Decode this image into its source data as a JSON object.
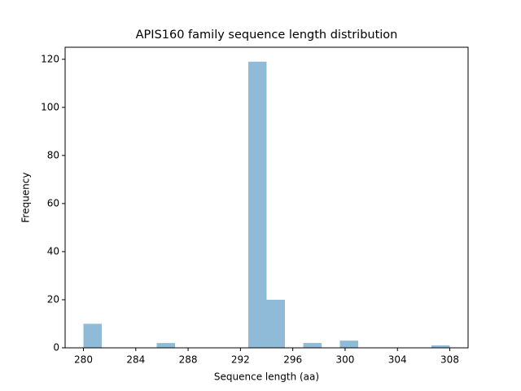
{
  "chart_data": {
    "type": "histogram",
    "title": "APIS160 family sequence length distribution",
    "xlabel": "Sequence length (aa)",
    "ylabel": "Frequency",
    "bins": [
      280,
      281.4,
      282.8,
      284.2,
      285.6,
      287,
      288.4,
      289.8,
      291.2,
      292.6,
      294,
      295.4,
      296.8,
      298.2,
      299.6,
      301,
      302.4,
      303.8,
      305.2,
      306.6,
      308
    ],
    "values": [
      10,
      0,
      0,
      0,
      2,
      0,
      0,
      0,
      0,
      119,
      20,
      0,
      2,
      0,
      3,
      0,
      0,
      0,
      0,
      1
    ],
    "color": "#8fbbd9",
    "xlim": [
      278.6,
      309.4
    ],
    "xticks": [
      280,
      284,
      288,
      292,
      296,
      300,
      304,
      308
    ],
    "ylim": [
      0,
      125
    ],
    "yticks": [
      0,
      20,
      40,
      60,
      80,
      100,
      120
    ]
  }
}
